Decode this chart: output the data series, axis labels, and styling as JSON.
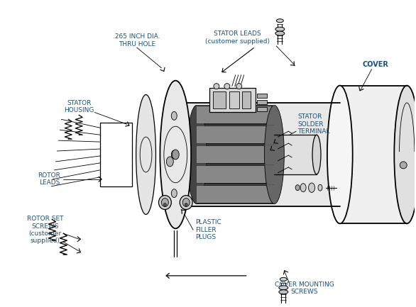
{
  "background_color": "#ffffff",
  "line_color": "#000000",
  "label_color": "#1a5276",
  "fig_width": 5.86,
  "fig_height": 4.33,
  "dpi": 100,
  "labels": {
    "thru_hole": ".265 INCH DIA.\nTHRU HOLE",
    "stator_housing": "STATOR\nHOUSING",
    "stator_leads": "STATOR LEADS\n(customer supplied)",
    "stator_solder": "STATOR\nSOLDER\nTERMINAL",
    "rotor_leads": "ROTOR\nLEADS",
    "rotor_set_screws": "ROTOR SET\nSCREWS\n(customer\nsupplied)",
    "plastic_filler": "PLASTIC\nFILLER\nPLUGS",
    "cover": "COVER",
    "cover_mounting": "COVER MOUNTING\nSCREWS"
  }
}
